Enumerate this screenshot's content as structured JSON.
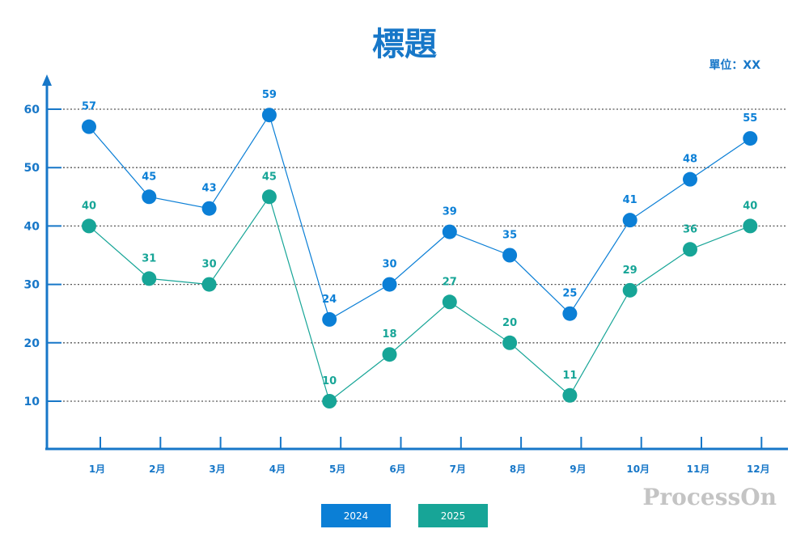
{
  "title": "標題",
  "unit_label": "單位：XX",
  "watermark": "ProcessOn",
  "colors": {
    "axis": "#1777c8",
    "series_2024": "#0b7fd6",
    "series_2025": "#17a597",
    "grid": "#555555"
  },
  "chart_data": {
    "type": "line",
    "title": "標題",
    "xlabel": "",
    "ylabel": "",
    "ylim": [
      2,
      64
    ],
    "yticks": [
      10,
      20,
      30,
      40,
      50,
      60
    ],
    "grid": true,
    "legend_position": "bottom-center",
    "categories": [
      "1月",
      "2月",
      "3月",
      "4月",
      "5月",
      "6月",
      "7月",
      "8月",
      "9月",
      "10月",
      "11月",
      "12月"
    ],
    "series": [
      {
        "name": "2024",
        "color": "#0b7fd6",
        "values": [
          57,
          45,
          43,
          59,
          24,
          30,
          39,
          35,
          25,
          41,
          48,
          55
        ]
      },
      {
        "name": "2025",
        "color": "#17a597",
        "values": [
          40,
          31,
          30,
          45,
          10,
          18,
          27,
          20,
          11,
          29,
          36,
          40
        ]
      }
    ]
  }
}
